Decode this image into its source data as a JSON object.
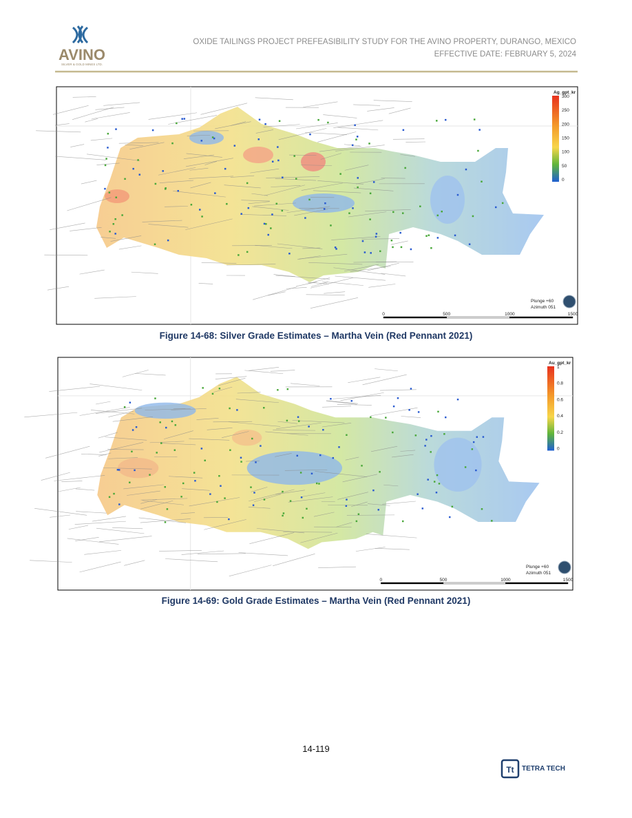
{
  "header": {
    "logo": "AVINO",
    "logo_sub": "SILVER & GOLD MINES LTD.",
    "line1": "OXIDE TAILINGS PROJECT PREFEASIBILITY STUDY FOR THE AVINO PROPERTY, DURANGO, MEXICO",
    "line2": "EFFECTIVE DATE: FEBRUARY 5, 2024"
  },
  "figures": [
    {
      "legend_title": "Ag_gpt_kr",
      "legend_ticks": [
        "300",
        "250",
        "200",
        "150",
        "100",
        "50",
        "0"
      ],
      "scale_ticks": [
        "0",
        "500",
        "1000",
        "1500"
      ],
      "view": [
        "Plunge +60",
        "Azimuth 051"
      ],
      "caption": "Figure 14-68: Silver Grade Estimates – Martha Vein (Red Pennant 2021)"
    },
    {
      "legend_title": "Au_gpt_kr",
      "legend_ticks": [
        "1",
        "0.8",
        "0.6",
        "0.4",
        "0.2",
        "0"
      ],
      "scale_ticks": [
        "0",
        "500",
        "1000",
        "1500"
      ],
      "view": [
        "Plunge +60",
        "Azimuth 051"
      ],
      "caption": "Figure 14-69: Gold Grade Estimates – Martha Vein (Red Pennant 2021)"
    }
  ],
  "footer": {
    "page_number": "14-119",
    "company": "TETRA TECH"
  }
}
